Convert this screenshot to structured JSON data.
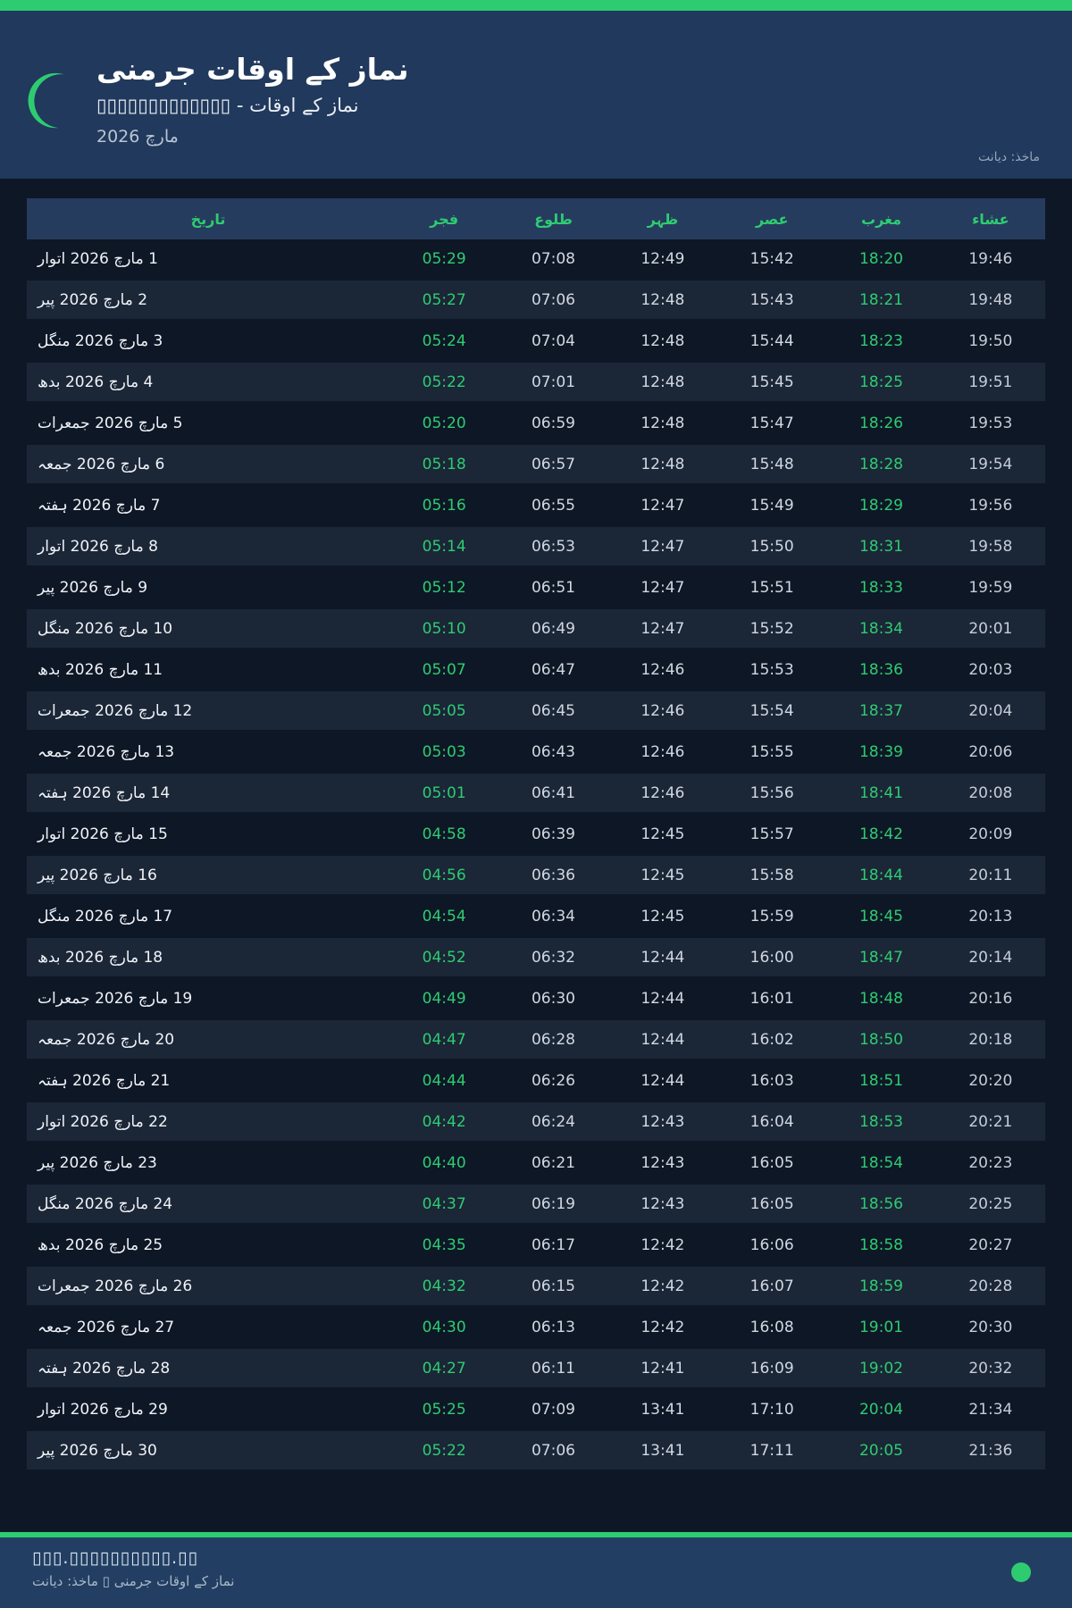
{
  "accent_color": "#2ecc71",
  "header": {
    "title": "نماز کے اوقات جرمنی",
    "subtitle": "نماز کے اوقات - ▯▯▯▯▯▯▯▯▯▯▯▯▯",
    "month": "مارچ 2026",
    "source": "ماخذ: دیانت",
    "moon_icon": "crescent-moon-icon"
  },
  "table": {
    "headers": [
      "تاریخ",
      "فجر",
      "طلوع",
      "ظہر",
      "عصر",
      "مغرب",
      "عشاء"
    ],
    "rows": [
      {
        "date": "1 مارچ 2026 اتوار",
        "times": [
          "05:29",
          "07:08",
          "12:49",
          "15:42",
          "18:20",
          "19:46"
        ]
      },
      {
        "date": "2 مارچ 2026 پیر",
        "times": [
          "05:27",
          "07:06",
          "12:48",
          "15:43",
          "18:21",
          "19:48"
        ]
      },
      {
        "date": "3 مارچ 2026 منگل",
        "times": [
          "05:24",
          "07:04",
          "12:48",
          "15:44",
          "18:23",
          "19:50"
        ]
      },
      {
        "date": "4 مارچ 2026 بدھ",
        "times": [
          "05:22",
          "07:01",
          "12:48",
          "15:45",
          "18:25",
          "19:51"
        ]
      },
      {
        "date": "5 مارچ 2026 جمعرات",
        "times": [
          "05:20",
          "06:59",
          "12:48",
          "15:47",
          "18:26",
          "19:53"
        ]
      },
      {
        "date": "6 مارچ 2026 جمعہ",
        "times": [
          "05:18",
          "06:57",
          "12:48",
          "15:48",
          "18:28",
          "19:54"
        ]
      },
      {
        "date": "7 مارچ 2026 ہفتہ",
        "times": [
          "05:16",
          "06:55",
          "12:47",
          "15:49",
          "18:29",
          "19:56"
        ]
      },
      {
        "date": "8 مارچ 2026 اتوار",
        "times": [
          "05:14",
          "06:53",
          "12:47",
          "15:50",
          "18:31",
          "19:58"
        ]
      },
      {
        "date": "9 مارچ 2026 پیر",
        "times": [
          "05:12",
          "06:51",
          "12:47",
          "15:51",
          "18:33",
          "19:59"
        ]
      },
      {
        "date": "10 مارچ 2026 منگل",
        "times": [
          "05:10",
          "06:49",
          "12:47",
          "15:52",
          "18:34",
          "20:01"
        ]
      },
      {
        "date": "11 مارچ 2026 بدھ",
        "times": [
          "05:07",
          "06:47",
          "12:46",
          "15:53",
          "18:36",
          "20:03"
        ]
      },
      {
        "date": "12 مارچ 2026 جمعرات",
        "times": [
          "05:05",
          "06:45",
          "12:46",
          "15:54",
          "18:37",
          "20:04"
        ]
      },
      {
        "date": "13 مارچ 2026 جمعہ",
        "times": [
          "05:03",
          "06:43",
          "12:46",
          "15:55",
          "18:39",
          "20:06"
        ]
      },
      {
        "date": "14 مارچ 2026 ہفتہ",
        "times": [
          "05:01",
          "06:41",
          "12:46",
          "15:56",
          "18:41",
          "20:08"
        ]
      },
      {
        "date": "15 مارچ 2026 اتوار",
        "times": [
          "04:58",
          "06:39",
          "12:45",
          "15:57",
          "18:42",
          "20:09"
        ]
      },
      {
        "date": "16 مارچ 2026 پیر",
        "times": [
          "04:56",
          "06:36",
          "12:45",
          "15:58",
          "18:44",
          "20:11"
        ]
      },
      {
        "date": "17 مارچ 2026 منگل",
        "times": [
          "04:54",
          "06:34",
          "12:45",
          "15:59",
          "18:45",
          "20:13"
        ]
      },
      {
        "date": "18 مارچ 2026 بدھ",
        "times": [
          "04:52",
          "06:32",
          "12:44",
          "16:00",
          "18:47",
          "20:14"
        ]
      },
      {
        "date": "19 مارچ 2026 جمعرات",
        "times": [
          "04:49",
          "06:30",
          "12:44",
          "16:01",
          "18:48",
          "20:16"
        ]
      },
      {
        "date": "20 مارچ 2026 جمعہ",
        "times": [
          "04:47",
          "06:28",
          "12:44",
          "16:02",
          "18:50",
          "20:18"
        ]
      },
      {
        "date": "21 مارچ 2026 ہفتہ",
        "times": [
          "04:44",
          "06:26",
          "12:44",
          "16:03",
          "18:51",
          "20:20"
        ]
      },
      {
        "date": "22 مارچ 2026 اتوار",
        "times": [
          "04:42",
          "06:24",
          "12:43",
          "16:04",
          "18:53",
          "20:21"
        ]
      },
      {
        "date": "23 مارچ 2026 پیر",
        "times": [
          "04:40",
          "06:21",
          "12:43",
          "16:05",
          "18:54",
          "20:23"
        ]
      },
      {
        "date": "24 مارچ 2026 منگل",
        "times": [
          "04:37",
          "06:19",
          "12:43",
          "16:05",
          "18:56",
          "20:25"
        ]
      },
      {
        "date": "25 مارچ 2026 بدھ",
        "times": [
          "04:35",
          "06:17",
          "12:42",
          "16:06",
          "18:58",
          "20:27"
        ]
      },
      {
        "date": "26 مارچ 2026 جمعرات",
        "times": [
          "04:32",
          "06:15",
          "12:42",
          "16:07",
          "18:59",
          "20:28"
        ]
      },
      {
        "date": "27 مارچ 2026 جمعہ",
        "times": [
          "04:30",
          "06:13",
          "12:42",
          "16:08",
          "19:01",
          "20:30"
        ]
      },
      {
        "date": "28 مارچ 2026 ہفتہ",
        "times": [
          "04:27",
          "06:11",
          "12:41",
          "16:09",
          "19:02",
          "20:32"
        ]
      },
      {
        "date": "29 مارچ 2026 اتوار",
        "times": [
          "05:25",
          "07:09",
          "13:41",
          "17:10",
          "20:04",
          "21:34"
        ]
      },
      {
        "date": "30 مارچ 2026 پیر",
        "times": [
          "05:22",
          "07:06",
          "13:41",
          "17:11",
          "20:05",
          "21:36"
        ]
      }
    ],
    "highlight_columns": [
      "فجر",
      "مغرب"
    ]
  },
  "footer": {
    "website": "▯▯▯.▯▯▯▯▯▯▯▯▯▯.▯▯",
    "credit": "نماز کے اوقات جرمنی ▯ ماخذ: دیانت",
    "status_dot_color": "#2ecc71"
  }
}
